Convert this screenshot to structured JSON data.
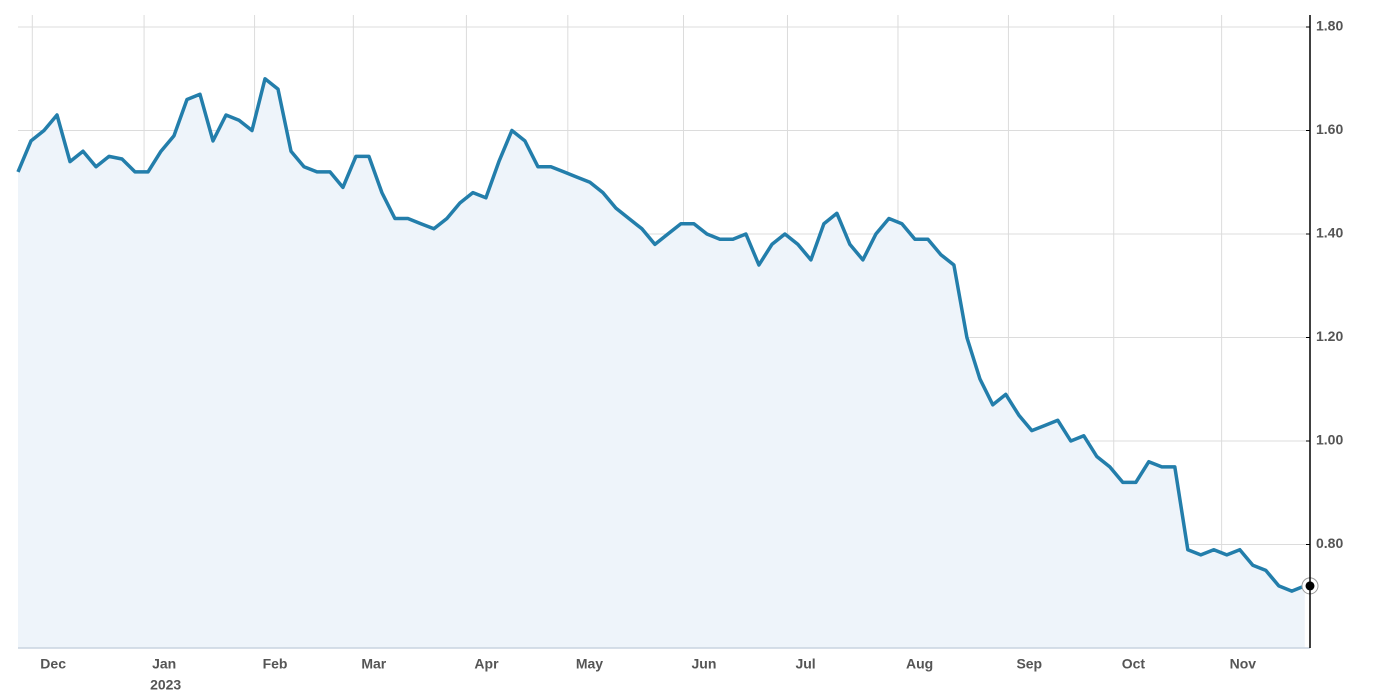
{
  "chart_data": {
    "type": "area",
    "series": [
      {
        "color": "#237eab",
        "fill": "#eef4fa",
        "values": [
          1.52,
          1.58,
          1.6,
          1.63,
          1.54,
          1.56,
          1.53,
          1.55,
          1.545,
          1.52,
          1.52,
          1.56,
          1.59,
          1.66,
          1.67,
          1.58,
          1.63,
          1.62,
          1.6,
          1.7,
          1.68,
          1.56,
          1.53,
          1.52,
          1.52,
          1.49,
          1.55,
          1.55,
          1.48,
          1.43,
          1.43,
          1.42,
          1.41,
          1.43,
          1.46,
          1.48,
          1.47,
          1.54,
          1.6,
          1.58,
          1.53,
          1.53,
          1.52,
          1.51,
          1.5,
          1.48,
          1.45,
          1.43,
          1.41,
          1.38,
          1.4,
          1.42,
          1.42,
          1.4,
          1.39,
          1.39,
          1.4,
          1.34,
          1.38,
          1.4,
          1.38,
          1.35,
          1.42,
          1.44,
          1.38,
          1.35,
          1.4,
          1.43,
          1.42,
          1.39,
          1.39,
          1.36,
          1.34,
          1.2,
          1.12,
          1.07,
          1.09,
          1.05,
          1.02,
          1.03,
          1.04,
          1.0,
          1.01,
          0.97,
          0.95,
          0.92,
          0.92,
          0.96,
          0.95,
          0.95,
          0.79,
          0.78,
          0.79,
          0.78,
          0.79,
          0.76,
          0.75,
          0.72,
          0.71,
          0.72
        ]
      }
    ],
    "xlim": [
      0,
      99.4
    ],
    "xticks": [
      {
        "value": 1.1,
        "label": "Dec"
      },
      {
        "value": 9.7,
        "label": "Jan"
      },
      {
        "value": 18.2,
        "label": "Feb"
      },
      {
        "value": 25.8,
        "label": "Mar"
      },
      {
        "value": 34.5,
        "label": "Apr"
      },
      {
        "value": 42.3,
        "label": "May"
      },
      {
        "value": 51.2,
        "label": "Jun"
      },
      {
        "value": 59.2,
        "label": "Jul"
      },
      {
        "value": 67.7,
        "label": "Aug"
      },
      {
        "value": 76.2,
        "label": "Sep"
      },
      {
        "value": 84.3,
        "label": "Oct"
      },
      {
        "value": 92.6,
        "label": "Nov"
      }
    ],
    "year_label": "2023",
    "ylim": [
      0.6,
      1.8
    ],
    "yticks": [
      {
        "value": 0.8,
        "label": "0.80"
      },
      {
        "value": 1.0,
        "label": "1.00"
      },
      {
        "value": 1.2,
        "label": "1.20"
      },
      {
        "value": 1.4,
        "label": "1.40"
      },
      {
        "value": 1.6,
        "label": "1.60"
      },
      {
        "value": 1.8,
        "label": "1.80"
      }
    ],
    "grid": true
  }
}
